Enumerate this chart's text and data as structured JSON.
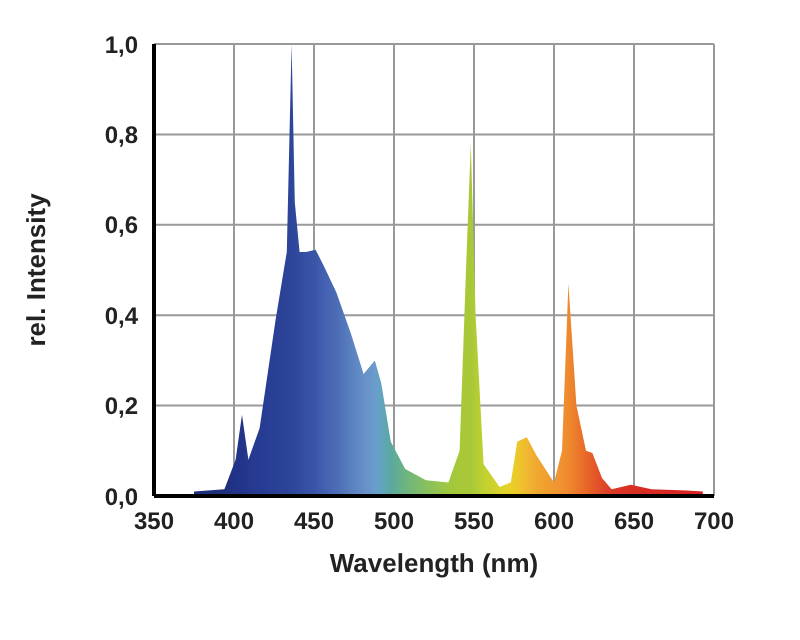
{
  "chart_data": {
    "type": "area",
    "xlabel": "Wavelength (nm)",
    "ylabel": "rel. Intensity",
    "x": [
      375,
      394,
      401,
      405,
      409,
      416,
      426,
      433,
      436,
      438,
      441,
      445,
      451,
      456,
      464,
      473,
      481,
      488,
      492,
      498,
      507,
      520,
      534,
      541,
      545,
      548,
      551,
      556,
      566,
      573,
      577,
      583,
      589,
      600,
      605,
      609,
      614,
      620,
      624,
      630,
      636,
      648,
      661,
      683,
      693
    ],
    "series": [
      {
        "values": [
          0.01,
          0.015,
          0.08,
          0.18,
          0.08,
          0.15,
          0.39,
          0.54,
          1.0,
          0.65,
          0.54,
          0.54,
          0.545,
          0.51,
          0.45,
          0.36,
          0.27,
          0.3,
          0.25,
          0.12,
          0.06,
          0.035,
          0.03,
          0.1,
          0.5,
          0.78,
          0.4,
          0.07,
          0.02,
          0.03,
          0.12,
          0.13,
          0.09,
          0.03,
          0.1,
          0.47,
          0.2,
          0.1,
          0.095,
          0.04,
          0.015,
          0.025,
          0.015,
          0.012,
          0.01
        ],
        "colors": [
          "#1f2f7a",
          "#1f2f7a",
          "#22348a",
          "#22348a",
          "#24388e",
          "#263c92",
          "#2a4096",
          "#2c4498",
          "#2e469a",
          "#30489c",
          "#324b9e",
          "#3550a4",
          "#3a56a8",
          "#4260b0",
          "#4c6cb6",
          "#5a80c0",
          "#6690c8",
          "#6a9ccc",
          "#62a4c0",
          "#5aa8a0",
          "#6cb480",
          "#88c060",
          "#a0c840",
          "#a8c838",
          "#a8c838",
          "#a8c838",
          "#b0cc36",
          "#c0d030",
          "#d8d42c",
          "#e8d028",
          "#ecc82a",
          "#f0b830",
          "#f0a830",
          "#f09830",
          "#f09030",
          "#ee8a2e",
          "#ec7a2c",
          "#e86828",
          "#e45c28",
          "#e04a28",
          "#dc3a26",
          "#d83024",
          "#d82a22",
          "#d82420",
          "#d82020"
        ]
      }
    ],
    "xlim": [
      350,
      700
    ],
    "xticks": [
      350,
      400,
      450,
      500,
      550,
      600,
      650,
      700
    ],
    "ylim": [
      0,
      1
    ],
    "yticks": [
      {
        "value": 0,
        "label": "0,0"
      },
      {
        "value": 0.2,
        "label": "0,2"
      },
      {
        "value": 0.4,
        "label": "0,4"
      },
      {
        "value": 0.6,
        "label": "0,6"
      },
      {
        "value": 0.8,
        "label": "0,8"
      },
      {
        "value": 1,
        "label": "1,0"
      }
    ],
    "grid": true
  }
}
